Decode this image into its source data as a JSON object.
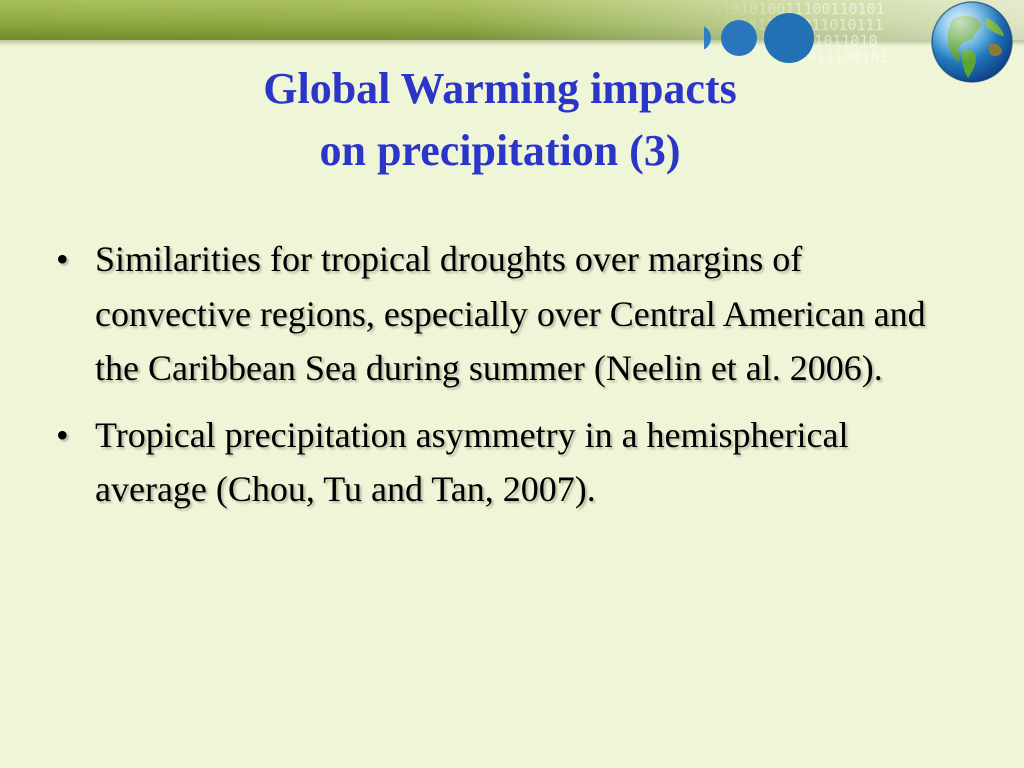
{
  "slide": {
    "background_color": "#eff5d7",
    "band_color": "#8eaa3f",
    "title_color": "#2b35c8",
    "title_lines": [
      "Global Warming impacts",
      "on precipitation (3)"
    ],
    "bullets": [
      {
        "marker": "•",
        "text": "Similarities for tropical droughts over margins of convective regions, especially over Central American and the Caribbean Sea during summer (Neelin et al. 2006)."
      },
      {
        "marker": "•",
        "text": "Tropical precipitation asymmetry in a hemispherical average (Chou, Tu and Tan, 2007)."
      }
    ],
    "decorations": {
      "globe_icon": "globe-icon",
      "binary_pattern": "binary-digits-pattern"
    }
  }
}
